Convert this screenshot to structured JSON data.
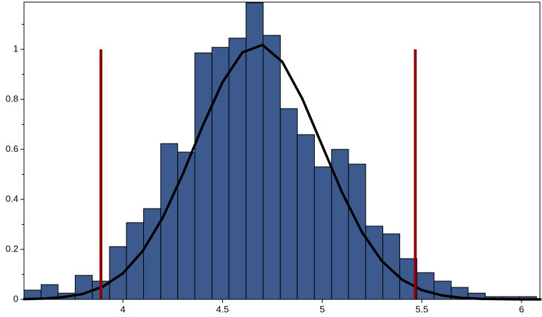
{
  "chart_data": {
    "type": "histogram",
    "bins": [
      3.504,
      3.59,
      3.675,
      3.761,
      3.847,
      3.933,
      4.018,
      4.104,
      4.19,
      4.275,
      4.361,
      4.447,
      4.532,
      4.618,
      4.704,
      4.79,
      4.875,
      4.961,
      5.047,
      5.132,
      5.218,
      5.304,
      5.389,
      5.475,
      5.561,
      5.647,
      5.732,
      5.818,
      5.904,
      5.989,
      6.075
    ],
    "values": [
      0.037,
      0.059,
      0.025,
      0.096,
      0.073,
      0.211,
      0.307,
      0.363,
      0.623,
      0.589,
      0.986,
      1.008,
      1.045,
      1.186,
      1.056,
      0.763,
      0.659,
      0.53,
      0.6,
      0.541,
      0.293,
      0.262,
      0.163,
      0.107,
      0.073,
      0.048,
      0.025,
      0.011,
      0.011,
      0.011
    ],
    "color": "#3d5a8e",
    "curve": {
      "color": "#000000",
      "x": [
        3.5,
        3.6,
        3.7,
        3.8,
        3.9,
        4.0,
        4.1,
        4.2,
        4.3,
        4.4,
        4.5,
        4.6,
        4.7,
        4.8,
        4.9,
        5.0,
        5.1,
        5.2,
        5.3,
        5.4,
        5.5,
        5.6,
        5.7,
        5.8,
        5.9,
        6.0,
        6.1
      ],
      "y": [
        0.001,
        0.003,
        0.009,
        0.022,
        0.051,
        0.104,
        0.194,
        0.327,
        0.5,
        0.693,
        0.869,
        0.988,
        1.018,
        0.95,
        0.803,
        0.615,
        0.427,
        0.268,
        0.153,
        0.079,
        0.037,
        0.016,
        0.006,
        0.002,
        0.001,
        0,
        0
      ]
    },
    "lines": [
      {
        "color": "#8b0000",
        "x": 3.89,
        "y": [
          0,
          1
        ]
      },
      {
        "color": "#8b0000",
        "x": 5.467,
        "y": [
          0,
          1
        ]
      }
    ],
    "xlim": [
      3.504,
      6.092
    ],
    "ylim": [
      0,
      1.189
    ],
    "xticks": [
      4,
      4.5,
      5,
      5.5,
      6
    ],
    "yticks": [
      0,
      0.2,
      0.4,
      0.6,
      0.8,
      1
    ],
    "yminorticks": [
      0.1,
      0.3,
      0.5,
      0.7,
      0.9,
      1.1
    ]
  }
}
